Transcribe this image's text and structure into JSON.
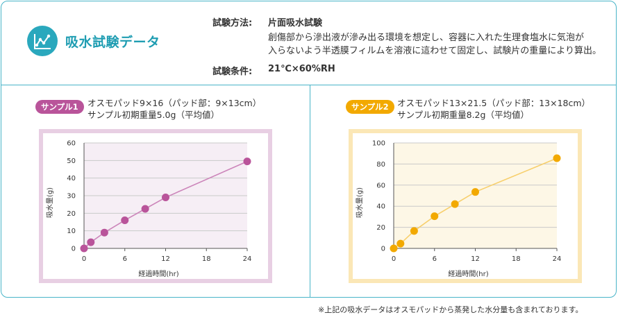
{
  "header": {
    "title": "吸水試験データ",
    "method_label": "試験方法:",
    "method_name": "片面吸水試験",
    "method_desc_line1": "創傷部から滲出液が滲み出る環境を想定し、容器に入れた生理食塩水に気泡が",
    "method_desc_line2": "入らないよう半透膜フィルムを溶液に這わせて固定し、試験片の重量により算出。",
    "condition_label": "試験条件:",
    "condition_value": "21℃×60%RH",
    "icon": "line-chart-icon"
  },
  "colors": {
    "frame": "#48b4c8",
    "title": "#1f9db2",
    "sample1": "#b9549a",
    "sample1_line": "#cc85ba",
    "sample1_border": "#e8cfe3",
    "sample1_plot_bg": "#f6eef5",
    "sample2": "#f2a900",
    "sample2_line": "#f7cf6c",
    "sample2_border": "#fbe7b6",
    "sample2_plot_bg": "#fdf7e6"
  },
  "samples": [
    {
      "badge": "サンプル1",
      "desc_line1": "オスモパッド9×16（パッド部：9×13cm）",
      "desc_line2": "サンプル初期重量5.0g（平均値）"
    },
    {
      "badge": "サンプル2",
      "desc_line1": "オスモパッド13×21.5（パッド部：13×18cm）",
      "desc_line2": "サンプル初期重量8.2g（平均値）"
    }
  ],
  "chart_data": [
    {
      "type": "line",
      "title": "",
      "xlabel": "経過時間(hr)",
      "ylabel": "吸水量(g)",
      "x": [
        0,
        1,
        3,
        6,
        9,
        12,
        24
      ],
      "y": [
        0,
        3.5,
        9,
        16,
        22.5,
        29,
        49.5
      ],
      "xticks": [
        0,
        6,
        12,
        18,
        24
      ],
      "yticks": [
        0,
        10,
        20,
        30,
        40,
        50,
        60
      ],
      "xlim": [
        0,
        24
      ],
      "ylim": [
        0,
        60
      ],
      "grid": "horizontal"
    },
    {
      "type": "line",
      "title": "",
      "xlabel": "経過時間(hr)",
      "ylabel": "吸水量(g)",
      "x": [
        0,
        1,
        3,
        6,
        9,
        12,
        24
      ],
      "y": [
        0,
        4.5,
        16.5,
        30.5,
        42,
        53.5,
        85.5
      ],
      "xticks": [
        0,
        6,
        12,
        18,
        24
      ],
      "yticks": [
        0,
        20,
        40,
        60,
        80,
        100
      ],
      "xlim": [
        0,
        24
      ],
      "ylim": [
        0,
        100
      ],
      "grid": "horizontal"
    }
  ],
  "footnote": "※上記の吸水データはオスモパッドから蒸発した水分量も含まれております。"
}
